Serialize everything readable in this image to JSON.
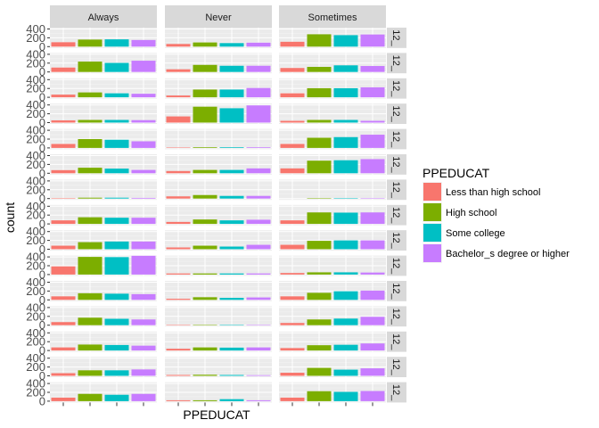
{
  "chart_data": {
    "type": "bar",
    "facet_columns": [
      "Always",
      "Never",
      "Sometimes"
    ],
    "facet_rows": [
      "12_",
      "12_",
      "12_",
      "12_",
      "12_",
      "12_",
      "12_",
      "12_",
      "12_",
      "12_",
      "12_",
      "12_",
      "12_",
      "12_",
      "12_"
    ],
    "categories": [
      "Less than high school",
      "High school",
      "Some college",
      "Bachelor_s degree or higher"
    ],
    "xlabel": "PPEDUCAT",
    "ylabel": "count",
    "y_ticks": [
      0,
      200,
      400
    ],
    "ylim": [
      0,
      400
    ],
    "grid": true,
    "legend": {
      "title": "PPEDUCAT",
      "placement": "right",
      "entries": [
        "Less than high school",
        "High school",
        "Some college",
        "Bachelor_s degree or higher"
      ]
    },
    "colors": [
      "#F8766D",
      "#7CAE00",
      "#00BFC4",
      "#C77CFF"
    ],
    "panels": [
      [
        [
          100,
          160,
          165,
          150
        ],
        [
          60,
          95,
          80,
          90
        ],
        [
          110,
          280,
          260,
          275
        ]
      ],
      [
        [
          100,
          235,
          205,
          255
        ],
        [
          60,
          160,
          140,
          140
        ],
        [
          90,
          115,
          150,
          135
        ]
      ],
      [
        [
          60,
          110,
          90,
          80
        ],
        [
          40,
          175,
          175,
          210
        ],
        [
          90,
          205,
          205,
          225
        ]
      ],
      [
        [
          50,
          60,
          60,
          55
        ],
        [
          140,
          360,
          325,
          390
        ],
        [
          40,
          60,
          60,
          40
        ]
      ],
      [
        [
          90,
          200,
          185,
          150
        ],
        [
          10,
          15,
          15,
          15
        ],
        [
          90,
          230,
          245,
          300
        ]
      ],
      [
        [
          70,
          125,
          105,
          75
        ],
        [
          50,
          75,
          75,
          110
        ],
        [
          110,
          285,
          295,
          320
        ]
      ],
      [
        [
          10,
          20,
          20,
          15
        ],
        [
          50,
          80,
          60,
          60
        ],
        [
          0,
          10,
          10,
          10
        ]
      ],
      [
        [
          80,
          150,
          140,
          140
        ],
        [
          45,
          100,
          80,
          95
        ],
        [
          80,
          260,
          255,
          260
        ]
      ],
      [
        [
          80,
          160,
          175,
          175
        ],
        [
          40,
          80,
          60,
          100
        ],
        [
          100,
          190,
          200,
          200
        ]
      ],
      [
        [
          185,
          400,
          395,
          425
        ],
        [
          25,
          25,
          25,
          25
        ],
        [
          35,
          50,
          50,
          45
        ]
      ],
      [
        [
          80,
          150,
          140,
          130
        ],
        [
          25,
          60,
          45,
          55
        ],
        [
          80,
          160,
          195,
          210
        ]
      ],
      [
        [
          70,
          170,
          145,
          130
        ],
        [
          10,
          10,
          10,
          10
        ],
        [
          50,
          130,
          150,
          190
        ]
      ],
      [
        [
          70,
          135,
          125,
          110
        ],
        [
          40,
          70,
          65,
          70
        ],
        [
          55,
          120,
          130,
          160
        ]
      ],
      [
        [
          60,
          125,
          125,
          145
        ],
        [
          20,
          25,
          20,
          15
        ],
        [
          70,
          180,
          140,
          170
        ]
      ],
      [
        [
          80,
          165,
          145,
          165
        ],
        [
          20,
          20,
          45,
          20
        ],
        [
          80,
          225,
          210,
          230
        ]
      ]
    ]
  }
}
